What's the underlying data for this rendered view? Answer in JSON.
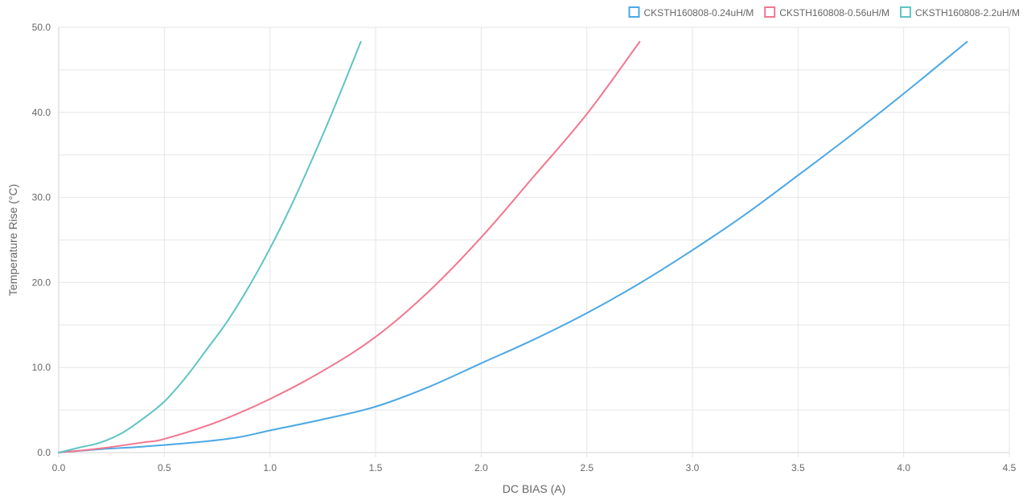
{
  "chart_data": {
    "type": "line",
    "xlabel": "DC BIAS (A)",
    "ylabel": "Temperature Rise (°C)",
    "xlim": [
      0,
      4.5
    ],
    "ylim": [
      0,
      50
    ],
    "x_ticks": [
      "0.0",
      "0.5",
      "1.0",
      "1.5",
      "2.0",
      "2.5",
      "3.0",
      "3.5",
      "4.0",
      "4.5"
    ],
    "y_ticks": [
      "0.0",
      "10.0",
      "20.0",
      "30.0",
      "40.0",
      "50.0"
    ],
    "grid": true,
    "legend_position": "top-right",
    "series": [
      {
        "name": "CKSTH160808-0.24uH/M",
        "color": "#4aa8e6",
        "points": [
          [
            0,
            0
          ],
          [
            0.2,
            0.4
          ],
          [
            0.4,
            0.7
          ],
          [
            0.65,
            1.2
          ],
          [
            0.85,
            1.8
          ],
          [
            1.0,
            2.6
          ],
          [
            1.25,
            3.9
          ],
          [
            1.5,
            5.4
          ],
          [
            1.75,
            7.7
          ],
          [
            2.0,
            10.5
          ],
          [
            2.25,
            13.3
          ],
          [
            2.5,
            16.4
          ],
          [
            2.75,
            19.9
          ],
          [
            3.0,
            23.8
          ],
          [
            3.25,
            28.0
          ],
          [
            3.5,
            32.6
          ],
          [
            3.75,
            37.3
          ],
          [
            4.0,
            42.2
          ],
          [
            4.3,
            48.3
          ]
        ]
      },
      {
        "name": "CKSTH160808-0.56uH/M",
        "color": "#f2768f",
        "points": [
          [
            0,
            0
          ],
          [
            0.2,
            0.5
          ],
          [
            0.4,
            1.2
          ],
          [
            0.5,
            1.6
          ],
          [
            0.75,
            3.6
          ],
          [
            1.0,
            6.3
          ],
          [
            1.25,
            9.6
          ],
          [
            1.5,
            13.6
          ],
          [
            1.75,
            18.9
          ],
          [
            2.0,
            25.3
          ],
          [
            2.25,
            32.5
          ],
          [
            2.5,
            39.8
          ],
          [
            2.75,
            48.3
          ]
        ]
      },
      {
        "name": "CKSTH160808-2.2uH/M",
        "color": "#5fc4c3",
        "points": [
          [
            0,
            0
          ],
          [
            0.1,
            0.6
          ],
          [
            0.2,
            1.2
          ],
          [
            0.3,
            2.3
          ],
          [
            0.4,
            4.0
          ],
          [
            0.5,
            6.0
          ],
          [
            0.6,
            8.8
          ],
          [
            0.7,
            12.1
          ],
          [
            0.8,
            15.5
          ],
          [
            0.9,
            19.5
          ],
          [
            1.0,
            24.0
          ],
          [
            1.1,
            29.0
          ],
          [
            1.2,
            34.5
          ],
          [
            1.3,
            40.3
          ],
          [
            1.43,
            48.3
          ]
        ]
      }
    ]
  }
}
